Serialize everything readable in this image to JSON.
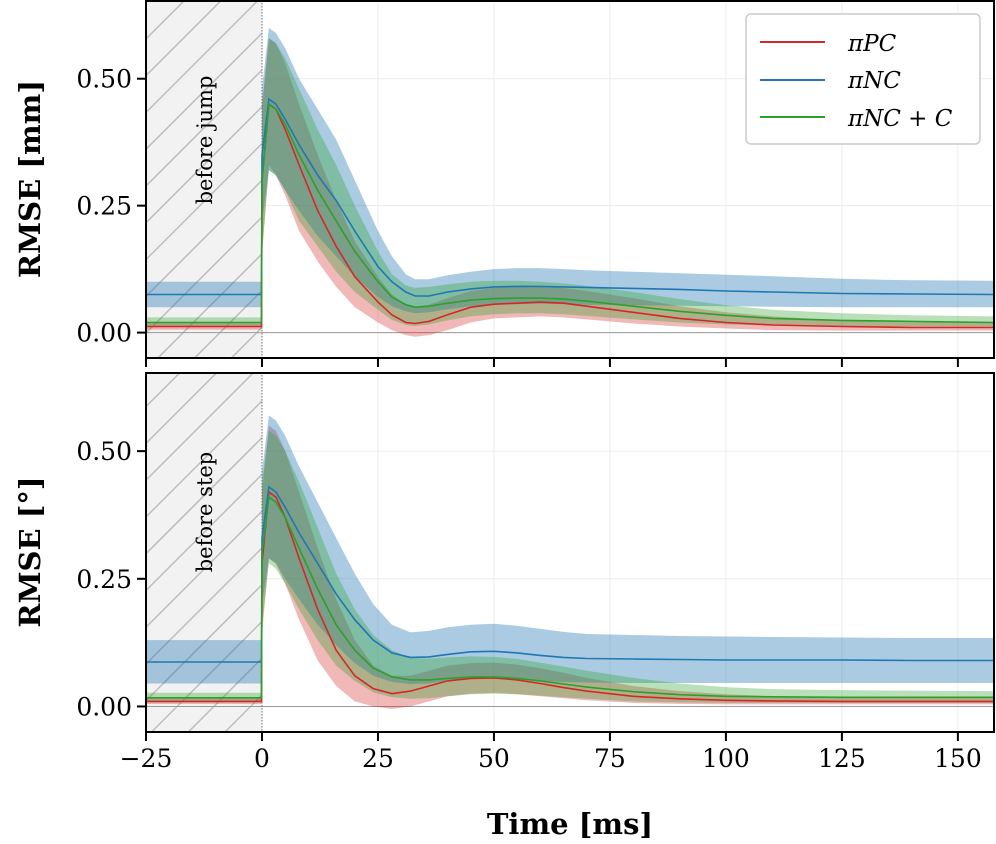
{
  "colors": {
    "pc": "#d62728",
    "nc": "#1f77b4",
    "ncc": "#2ca02c",
    "frame": "#000000",
    "grid": "#ececec",
    "shade": "#f2f2f2",
    "hatch": "#bdbdbd"
  },
  "legend": [
    {
      "key": "pc",
      "label": "πPC"
    },
    {
      "key": "nc",
      "label": "πNC"
    },
    {
      "key": "ncc",
      "label": "πNC + C"
    }
  ],
  "chart_data": [
    {
      "type": "line",
      "ylabel": "RMSE [mm]",
      "annotation": "before jump",
      "xlim": [
        -25,
        158
      ],
      "ylim": [
        -0.05,
        0.655
      ],
      "yticks": [
        "0.00",
        "0.25",
        "0.50"
      ],
      "ytick_values": [
        0,
        0.25,
        0.5
      ],
      "grid": true,
      "legend": "top-right",
      "series": [
        {
          "key": "pc",
          "x": [
            -25,
            -0.1,
            0,
            1.5,
            3,
            5,
            8,
            12,
            16,
            20,
            25,
            28,
            31,
            33,
            36,
            40,
            45,
            50,
            55,
            60,
            65,
            70,
            80,
            90,
            100,
            110,
            125,
            140,
            158
          ],
          "y": [
            0.012,
            0.012,
            0.3,
            0.45,
            0.44,
            0.4,
            0.33,
            0.24,
            0.17,
            0.11,
            0.06,
            0.035,
            0.02,
            0.018,
            0.022,
            0.035,
            0.05,
            0.056,
            0.058,
            0.06,
            0.058,
            0.052,
            0.04,
            0.028,
            0.02,
            0.015,
            0.012,
            0.01,
            0.01
          ],
          "lo": [
            0.006,
            0.006,
            0.15,
            0.33,
            0.31,
            0.27,
            0.2,
            0.14,
            0.09,
            0.05,
            0.02,
            0.005,
            -0.005,
            -0.008,
            -0.005,
            0.005,
            0.02,
            0.028,
            0.03,
            0.032,
            0.03,
            0.026,
            0.018,
            0.012,
            0.008,
            0.005,
            0.004,
            0.004,
            0.004
          ],
          "hi": [
            0.02,
            0.02,
            0.45,
            0.58,
            0.57,
            0.53,
            0.45,
            0.35,
            0.26,
            0.18,
            0.11,
            0.075,
            0.055,
            0.05,
            0.055,
            0.068,
            0.082,
            0.088,
            0.09,
            0.09,
            0.088,
            0.082,
            0.068,
            0.052,
            0.04,
            0.032,
            0.024,
            0.02,
            0.02
          ]
        },
        {
          "key": "nc",
          "x": [
            -25,
            -0.1,
            0,
            1.5,
            3,
            5,
            8,
            12,
            16,
            20,
            25,
            28,
            31,
            33,
            36,
            40,
            45,
            50,
            55,
            60,
            65,
            70,
            80,
            90,
            100,
            110,
            125,
            140,
            158
          ],
          "y": [
            0.075,
            0.075,
            0.35,
            0.46,
            0.45,
            0.42,
            0.37,
            0.31,
            0.26,
            0.2,
            0.13,
            0.1,
            0.08,
            0.072,
            0.072,
            0.08,
            0.086,
            0.09,
            0.091,
            0.091,
            0.09,
            0.089,
            0.087,
            0.085,
            0.082,
            0.08,
            0.077,
            0.076,
            0.075
          ],
          "lo": [
            0.05,
            0.05,
            0.22,
            0.32,
            0.31,
            0.28,
            0.24,
            0.19,
            0.15,
            0.11,
            0.07,
            0.052,
            0.042,
            0.038,
            0.04,
            0.046,
            0.052,
            0.055,
            0.056,
            0.057,
            0.056,
            0.055,
            0.054,
            0.053,
            0.052,
            0.051,
            0.05,
            0.05,
            0.05
          ],
          "hi": [
            0.1,
            0.1,
            0.48,
            0.6,
            0.59,
            0.56,
            0.5,
            0.44,
            0.38,
            0.3,
            0.2,
            0.15,
            0.115,
            0.105,
            0.105,
            0.113,
            0.12,
            0.125,
            0.127,
            0.127,
            0.125,
            0.123,
            0.12,
            0.117,
            0.114,
            0.111,
            0.106,
            0.103,
            0.102
          ]
        },
        {
          "key": "ncc",
          "x": [
            -25,
            -0.1,
            0,
            1.5,
            3,
            5,
            8,
            12,
            16,
            20,
            25,
            28,
            31,
            33,
            36,
            40,
            45,
            50,
            55,
            60,
            65,
            70,
            80,
            90,
            100,
            110,
            125,
            140,
            158
          ],
          "y": [
            0.02,
            0.02,
            0.3,
            0.45,
            0.44,
            0.41,
            0.35,
            0.28,
            0.22,
            0.16,
            0.1,
            0.07,
            0.055,
            0.05,
            0.052,
            0.058,
            0.064,
            0.067,
            0.068,
            0.068,
            0.066,
            0.062,
            0.052,
            0.042,
            0.034,
            0.028,
            0.024,
            0.022,
            0.02
          ],
          "lo": [
            0.012,
            0.012,
            0.16,
            0.32,
            0.31,
            0.28,
            0.22,
            0.17,
            0.12,
            0.08,
            0.045,
            0.025,
            0.015,
            0.013,
            0.016,
            0.024,
            0.032,
            0.036,
            0.038,
            0.038,
            0.036,
            0.033,
            0.026,
            0.02,
            0.016,
            0.014,
            0.012,
            0.012,
            0.012
          ],
          "hi": [
            0.03,
            0.03,
            0.44,
            0.58,
            0.57,
            0.54,
            0.48,
            0.4,
            0.33,
            0.25,
            0.16,
            0.115,
            0.093,
            0.088,
            0.09,
            0.095,
            0.1,
            0.102,
            0.102,
            0.1,
            0.097,
            0.092,
            0.08,
            0.066,
            0.054,
            0.045,
            0.038,
            0.034,
            0.032
          ]
        }
      ]
    },
    {
      "type": "line",
      "ylabel": "RMSE [°]",
      "annotation": "before step",
      "xlabel": "Time [ms]",
      "xlim": [
        -25,
        158
      ],
      "ylim": [
        -0.05,
        0.655
      ],
      "xticks": [
        "−25",
        "0",
        "25",
        "50",
        "75",
        "100",
        "125",
        "150"
      ],
      "xtick_values": [
        -25,
        0,
        25,
        50,
        75,
        100,
        125,
        150
      ],
      "yticks": [
        "0.00",
        "0.25",
        "0.50"
      ],
      "ytick_values": [
        0,
        0.25,
        0.5
      ],
      "grid": true,
      "series": [
        {
          "key": "pc",
          "x": [
            -25,
            -0.1,
            0,
            1.5,
            3,
            5,
            8,
            12,
            16,
            20,
            24,
            28,
            32,
            36,
            40,
            45,
            50,
            55,
            60,
            65,
            70,
            80,
            90,
            100,
            110,
            125,
            140,
            158
          ],
          "y": [
            0.01,
            0.01,
            0.28,
            0.42,
            0.41,
            0.37,
            0.29,
            0.19,
            0.11,
            0.06,
            0.035,
            0.025,
            0.03,
            0.04,
            0.05,
            0.055,
            0.056,
            0.052,
            0.045,
            0.037,
            0.03,
            0.02,
            0.015,
            0.012,
            0.011,
            0.01,
            0.01,
            0.01
          ],
          "lo": [
            0.005,
            0.005,
            0.14,
            0.29,
            0.28,
            0.24,
            0.17,
            0.09,
            0.04,
            0.01,
            0.0,
            -0.005,
            0.0,
            0.01,
            0.02,
            0.025,
            0.027,
            0.024,
            0.02,
            0.016,
            0.012,
            0.007,
            0.005,
            0.004,
            0.004,
            0.004,
            0.004,
            0.004
          ],
          "hi": [
            0.018,
            0.018,
            0.42,
            0.55,
            0.54,
            0.5,
            0.42,
            0.31,
            0.21,
            0.13,
            0.08,
            0.06,
            0.06,
            0.07,
            0.08,
            0.085,
            0.086,
            0.082,
            0.075,
            0.066,
            0.056,
            0.04,
            0.03,
            0.024,
            0.02,
            0.018,
            0.018,
            0.018
          ]
        },
        {
          "key": "nc",
          "x": [
            -25,
            -0.1,
            0,
            1.5,
            3,
            5,
            8,
            12,
            16,
            20,
            24,
            28,
            32,
            36,
            40,
            45,
            50,
            55,
            60,
            65,
            70,
            80,
            90,
            100,
            110,
            125,
            140,
            158
          ],
          "y": [
            0.087,
            0.087,
            0.33,
            0.43,
            0.42,
            0.39,
            0.34,
            0.28,
            0.22,
            0.17,
            0.13,
            0.105,
            0.096,
            0.097,
            0.102,
            0.107,
            0.108,
            0.105,
            0.1,
            0.096,
            0.094,
            0.093,
            0.092,
            0.091,
            0.091,
            0.091,
            0.09,
            0.09
          ],
          "lo": [
            0.045,
            0.045,
            0.2,
            0.29,
            0.28,
            0.25,
            0.21,
            0.16,
            0.12,
            0.085,
            0.06,
            0.048,
            0.044,
            0.045,
            0.05,
            0.054,
            0.055,
            0.053,
            0.05,
            0.048,
            0.047,
            0.046,
            0.046,
            0.046,
            0.046,
            0.046,
            0.046,
            0.046
          ],
          "hi": [
            0.13,
            0.13,
            0.46,
            0.57,
            0.56,
            0.53,
            0.47,
            0.4,
            0.33,
            0.26,
            0.2,
            0.16,
            0.145,
            0.148,
            0.155,
            0.16,
            0.162,
            0.158,
            0.152,
            0.146,
            0.142,
            0.14,
            0.138,
            0.137,
            0.136,
            0.135,
            0.134,
            0.134
          ]
        },
        {
          "key": "ncc",
          "x": [
            -25,
            -0.1,
            0,
            1.5,
            3,
            5,
            8,
            12,
            16,
            20,
            24,
            28,
            32,
            36,
            40,
            45,
            50,
            55,
            60,
            65,
            70,
            80,
            90,
            100,
            110,
            125,
            140,
            158
          ],
          "y": [
            0.017,
            0.017,
            0.3,
            0.41,
            0.4,
            0.37,
            0.31,
            0.23,
            0.16,
            0.11,
            0.075,
            0.058,
            0.052,
            0.052,
            0.055,
            0.058,
            0.058,
            0.055,
            0.05,
            0.044,
            0.038,
            0.029,
            0.023,
            0.02,
            0.019,
            0.018,
            0.018,
            0.018
          ],
          "lo": [
            0.01,
            0.01,
            0.16,
            0.28,
            0.27,
            0.24,
            0.19,
            0.13,
            0.08,
            0.05,
            0.028,
            0.018,
            0.015,
            0.016,
            0.02,
            0.024,
            0.025,
            0.024,
            0.021,
            0.018,
            0.015,
            0.01,
            0.008,
            0.007,
            0.007,
            0.007,
            0.007,
            0.007
          ],
          "hi": [
            0.027,
            0.027,
            0.44,
            0.54,
            0.53,
            0.5,
            0.44,
            0.35,
            0.26,
            0.19,
            0.14,
            0.11,
            0.095,
            0.094,
            0.096,
            0.098,
            0.097,
            0.093,
            0.086,
            0.078,
            0.07,
            0.056,
            0.045,
            0.038,
            0.034,
            0.032,
            0.031,
            0.03
          ]
        }
      ]
    }
  ]
}
